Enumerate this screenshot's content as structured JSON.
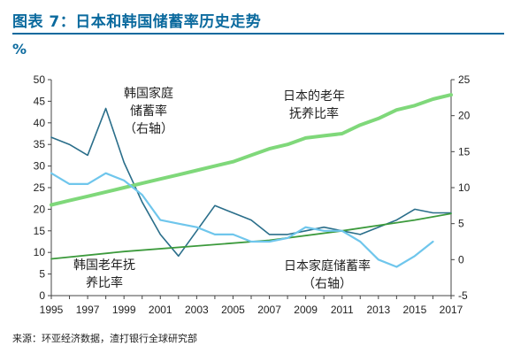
{
  "header": {
    "title": "图表 7：日本和韩国储蓄率历史走势",
    "unit": "%"
  },
  "source": "来源：环亚经济数据，渣打银行全球研究部",
  "colors": {
    "title": "#0b6a9e",
    "korea_household": "#2a6e8a",
    "japan_elderly": "#7fd87a",
    "korea_elderly": "#3c9a3c",
    "japan_household": "#6fc6ec",
    "axis": "#444444"
  },
  "chart_data": {
    "type": "line",
    "x_ticks": [
      "1995",
      "1997",
      "1999",
      "2001",
      "2003",
      "2005",
      "2007",
      "2009",
      "2011",
      "2013",
      "2015",
      "2017"
    ],
    "xlim": [
      1995,
      2017
    ],
    "y_left": {
      "lim": [
        0,
        50
      ],
      "ticks": [
        "0",
        "5",
        "10",
        "15",
        "20",
        "25",
        "30",
        "35",
        "40",
        "45",
        "50"
      ]
    },
    "y_right": {
      "lim": [
        -5,
        25
      ],
      "ticks": [
        "-5",
        "0",
        "5",
        "10",
        "15",
        "20",
        "25"
      ]
    },
    "annotations": [
      {
        "lines": [
          "韩国家庭",
          "储蓄率",
          "（右轴）"
        ],
        "anchor": "korea_household"
      },
      {
        "lines": [
          "日本的老年",
          "抚养比率"
        ],
        "anchor": "japan_elderly"
      },
      {
        "lines": [
          "韩国老年抚",
          "养比率"
        ],
        "anchor": "korea_elderly"
      },
      {
        "lines": [
          "日本家庭储蓄率",
          "（右轴）"
        ],
        "anchor": "japan_household"
      }
    ],
    "series": [
      {
        "key": "korea_household",
        "axis": "right",
        "points": [
          [
            1995,
            17
          ],
          [
            1996,
            16
          ],
          [
            1997,
            14.5
          ],
          [
            1998,
            21
          ],
          [
            1999,
            13.5
          ],
          [
            2000,
            8
          ],
          [
            2001,
            3.5
          ],
          [
            2002,
            0.5
          ],
          [
            2003,
            4
          ],
          [
            2004,
            7.5
          ],
          [
            2005,
            6.5
          ],
          [
            2006,
            5.5
          ],
          [
            2007,
            3.5
          ],
          [
            2008,
            3.5
          ],
          [
            2009,
            4
          ],
          [
            2010,
            4.5
          ],
          [
            2011,
            4
          ],
          [
            2012,
            3.5
          ],
          [
            2013,
            4.5
          ],
          [
            2014,
            5.5
          ],
          [
            2015,
            7
          ],
          [
            2016,
            6.5
          ],
          [
            2017,
            6.5
          ]
        ]
      },
      {
        "key": "japan_elderly",
        "axis": "left",
        "points": [
          [
            1995,
            21
          ],
          [
            1996,
            22
          ],
          [
            1997,
            23
          ],
          [
            1998,
            24
          ],
          [
            1999,
            25
          ],
          [
            2000,
            26
          ],
          [
            2001,
            27
          ],
          [
            2002,
            28
          ],
          [
            2003,
            29
          ],
          [
            2004,
            30
          ],
          [
            2005,
            31
          ],
          [
            2006,
            32.5
          ],
          [
            2007,
            34
          ],
          [
            2008,
            35
          ],
          [
            2009,
            36.5
          ],
          [
            2010,
            37
          ],
          [
            2011,
            37.5
          ],
          [
            2012,
            39.5
          ],
          [
            2013,
            41
          ],
          [
            2014,
            43
          ],
          [
            2015,
            44
          ],
          [
            2016,
            45.5
          ],
          [
            2017,
            46.5
          ]
        ]
      },
      {
        "key": "korea_elderly",
        "axis": "left",
        "points": [
          [
            1995,
            8.5
          ],
          [
            1999,
            10.2
          ],
          [
            2003,
            11.5
          ],
          [
            2007,
            12.8
          ],
          [
            2011,
            15
          ],
          [
            2015,
            17.5
          ],
          [
            2017,
            19
          ]
        ]
      },
      {
        "key": "japan_household",
        "axis": "right",
        "points": [
          [
            1995,
            12
          ],
          [
            1996,
            10.5
          ],
          [
            1997,
            10.5
          ],
          [
            1998,
            12
          ],
          [
            1999,
            11
          ],
          [
            2000,
            9
          ],
          [
            2001,
            5.5
          ],
          [
            2002,
            5
          ],
          [
            2003,
            4.5
          ],
          [
            2004,
            3.5
          ],
          [
            2005,
            3.5
          ],
          [
            2006,
            2.5
          ],
          [
            2007,
            2.5
          ],
          [
            2008,
            3
          ],
          [
            2009,
            4.5
          ],
          [
            2010,
            4
          ],
          [
            2011,
            4
          ],
          [
            2012,
            2.5
          ],
          [
            2013,
            0
          ],
          [
            2014,
            -1
          ],
          [
            2015,
            0.5
          ],
          [
            2016,
            2.5
          ]
        ]
      }
    ]
  }
}
